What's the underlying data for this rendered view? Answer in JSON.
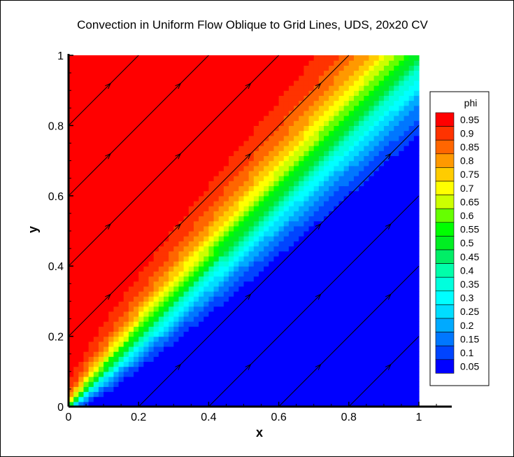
{
  "chart_data": {
    "type": "contour",
    "title": "Convection in Uniform Flow Oblique to Grid Lines, UDS, 20x20 CV",
    "xlabel": "x",
    "ylabel": "y",
    "xlim": [
      0,
      1
    ],
    "ylim": [
      0,
      1
    ],
    "xticks": [
      "0",
      "0.2",
      "0.4",
      "0.6",
      "0.8",
      "1"
    ],
    "yticks": [
      "0",
      "0.2",
      "0.4",
      "0.6",
      "0.8",
      "1"
    ],
    "legend": {
      "title": "phi",
      "placement": "right",
      "levels": [
        "0.95",
        "0.9",
        "0.85",
        "0.8",
        "0.75",
        "0.7",
        "0.65",
        "0.6",
        "0.55",
        "0.5",
        "0.45",
        "0.4",
        "0.35",
        "0.3",
        "0.25",
        "0.2",
        "0.15",
        "0.1",
        "0.05"
      ],
      "colors": [
        "#ff0000",
        "#ff3300",
        "#ff6600",
        "#ff9900",
        "#ffcc00",
        "#ffff00",
        "#ccff00",
        "#66ff00",
        "#00ff00",
        "#00ee22",
        "#00ee66",
        "#00ffaa",
        "#00ffdd",
        "#00ffff",
        "#00ddff",
        "#00aaff",
        "#0077ff",
        "#0044ff",
        "#0000ff"
      ]
    },
    "field": {
      "description": "phi = 1 above diagonal y=x, 0 below, smeared by upwind numerical diffusion",
      "flow_angle_deg": 45
    },
    "streamlines": {
      "direction": [
        1,
        1
      ],
      "intercepts": [
        0.2,
        0.4,
        0.6,
        0.8,
        1.0,
        -0.2,
        -0.4,
        -0.6,
        -0.8
      ]
    }
  }
}
